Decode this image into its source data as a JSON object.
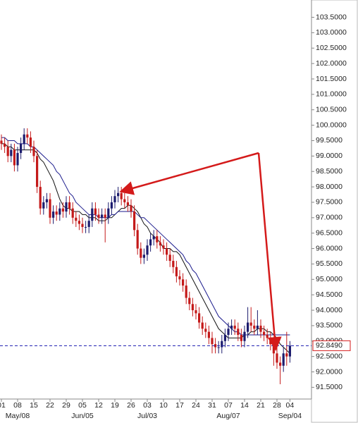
{
  "chart_data": {
    "type": "candlestick",
    "categories": [
      "01",
      null,
      null,
      null,
      null,
      "08",
      null,
      null,
      null,
      null,
      "15",
      null,
      null,
      null,
      null,
      "22",
      null,
      null,
      null,
      null,
      "29",
      null,
      null,
      null,
      null,
      "05",
      null,
      null,
      null,
      null,
      "12",
      null,
      null,
      null,
      null,
      "19",
      null,
      null,
      null,
      null,
      "26",
      null,
      null,
      null,
      null,
      "03",
      null,
      null,
      null,
      null,
      "10",
      null,
      null,
      null,
      null,
      "17",
      null,
      null,
      null,
      null,
      "24",
      null,
      null,
      null,
      null,
      "31",
      null,
      null,
      null,
      null,
      "07",
      null,
      null,
      null,
      null,
      "14",
      null,
      null,
      null,
      null,
      "21",
      null,
      null,
      null,
      null,
      "28",
      null,
      null,
      null,
      "04"
    ],
    "months": [
      null,
      null,
      null,
      null,
      null,
      "May/08",
      null,
      null,
      null,
      null,
      null,
      null,
      null,
      null,
      null,
      null,
      null,
      null,
      null,
      null,
      null,
      null,
      null,
      null,
      null,
      "Jun/05",
      null,
      null,
      null,
      null,
      null,
      null,
      null,
      null,
      null,
      null,
      null,
      null,
      null,
      null,
      null,
      null,
      null,
      null,
      null,
      "Jul/03",
      null,
      null,
      null,
      null,
      null,
      null,
      null,
      null,
      null,
      null,
      null,
      null,
      null,
      null,
      null,
      null,
      null,
      null,
      null,
      null,
      null,
      null,
      null,
      null,
      "Aug/07",
      null,
      null,
      null,
      null,
      null,
      null,
      null,
      null,
      null,
      null,
      null,
      null,
      null,
      null,
      null,
      null,
      null,
      null,
      "Sep/04"
    ],
    "open": [
      99.5,
      99.4,
      99.3,
      99.0,
      99.2,
      98.7,
      99.1,
      99.4,
      99.7,
      99.6,
      99.3,
      99.0,
      98.0,
      97.3,
      97.5,
      97.6,
      97.0,
      97.2,
      97.1,
      97.3,
      97.2,
      97.5,
      97.3,
      97.0,
      96.9,
      96.8,
      96.7,
      96.7,
      96.9,
      97.3,
      97.1,
      97.0,
      97.1,
      97.0,
      97.3,
      97.5,
      97.7,
      97.8,
      97.6,
      97.5,
      97.4,
      97.2,
      96.6,
      96.0,
      95.7,
      95.8,
      96.1,
      96.3,
      96.4,
      96.2,
      96.1,
      96.0,
      95.8,
      95.6,
      95.4,
      95.1,
      95.0,
      94.8,
      94.4,
      94.2,
      94.0,
      93.9,
      93.6,
      93.4,
      93.3,
      93.1,
      92.9,
      92.8,
      92.8,
      93.0,
      93.2,
      93.4,
      93.5,
      93.4,
      93.2,
      93.0,
      93.3,
      93.6,
      93.5,
      93.4,
      93.5,
      93.3,
      93.2,
      93.1,
      92.9,
      92.6,
      92.3,
      92.2,
      92.6,
      92.5
    ],
    "high": [
      99.7,
      99.6,
      99.5,
      99.4,
      99.4,
      99.3,
      99.6,
      99.9,
      99.9,
      99.8,
      99.5,
      99.2,
      98.2,
      97.7,
      97.8,
      97.8,
      97.4,
      97.4,
      97.5,
      97.5,
      97.7,
      97.7,
      97.5,
      97.2,
      97.1,
      97.0,
      96.9,
      97.1,
      97.5,
      97.5,
      97.3,
      97.3,
      97.3,
      97.5,
      97.7,
      97.9,
      98.0,
      98.0,
      97.8,
      97.7,
      97.6,
      97.4,
      96.8,
      96.2,
      96.0,
      96.3,
      96.5,
      96.6,
      96.6,
      96.4,
      96.3,
      96.2,
      96.0,
      95.8,
      95.6,
      95.3,
      95.2,
      95.0,
      94.6,
      94.4,
      94.2,
      94.1,
      93.8,
      93.6,
      93.5,
      93.3,
      93.1,
      93.0,
      93.2,
      93.4,
      93.6,
      93.7,
      93.7,
      93.6,
      93.4,
      93.5,
      94.1,
      94.1,
      93.7,
      94.0,
      93.7,
      93.5,
      93.4,
      93.3,
      93.1,
      92.8,
      92.5,
      92.8,
      93.3,
      93.0
    ],
    "low": [
      99.2,
      99.1,
      98.8,
      98.8,
      98.5,
      98.5,
      98.9,
      99.2,
      99.4,
      99.1,
      98.8,
      97.8,
      97.1,
      97.1,
      97.3,
      96.8,
      96.8,
      96.9,
      96.9,
      97.0,
      97.0,
      97.1,
      96.8,
      96.7,
      96.6,
      96.5,
      96.5,
      96.5,
      96.7,
      96.9,
      96.8,
      96.8,
      96.2,
      96.8,
      97.1,
      97.3,
      97.5,
      97.4,
      97.3,
      97.2,
      97.0,
      96.4,
      95.8,
      95.5,
      95.5,
      95.6,
      95.9,
      96.1,
      96.0,
      95.9,
      95.8,
      95.6,
      95.4,
      95.2,
      94.9,
      94.8,
      94.6,
      94.2,
      94.0,
      93.8,
      93.7,
      93.4,
      93.2,
      93.1,
      92.9,
      92.6,
      92.6,
      92.6,
      92.6,
      92.8,
      93.0,
      93.2,
      93.2,
      93.0,
      92.8,
      92.8,
      93.1,
      93.3,
      93.2,
      93.2,
      93.1,
      93.0,
      92.9,
      92.7,
      92.2,
      92.1,
      91.6,
      92.0,
      92.2,
      92.3
    ],
    "close": [
      99.4,
      99.3,
      99.0,
      99.2,
      98.7,
      99.1,
      99.4,
      99.7,
      99.6,
      99.3,
      99.0,
      98.0,
      97.3,
      97.5,
      97.6,
      97.0,
      97.2,
      97.1,
      97.3,
      97.2,
      97.5,
      97.3,
      97.0,
      96.9,
      96.8,
      96.7,
      96.7,
      96.9,
      97.3,
      97.1,
      97.0,
      97.1,
      97.0,
      97.3,
      97.5,
      97.7,
      97.8,
      97.6,
      97.5,
      97.4,
      97.2,
      96.6,
      96.0,
      95.7,
      95.8,
      96.1,
      96.3,
      96.4,
      96.2,
      96.1,
      96.0,
      95.8,
      95.6,
      95.4,
      95.1,
      95.0,
      94.8,
      94.4,
      94.2,
      94.0,
      93.9,
      93.6,
      93.4,
      93.3,
      93.1,
      92.9,
      92.8,
      92.8,
      93.0,
      93.2,
      93.4,
      93.5,
      93.4,
      93.2,
      93.0,
      93.3,
      93.6,
      93.5,
      93.4,
      93.5,
      93.3,
      93.2,
      93.1,
      92.9,
      92.6,
      92.3,
      92.2,
      92.6,
      92.5,
      92.85
    ],
    "up_color": "#1c1c6e",
    "down_color": "#c41a1a",
    "series": [
      {
        "color": "#111111",
        "values": [
          99.4,
          99.4,
          99.3,
          99.3,
          99.2,
          99.2,
          99.2,
          99.2,
          99.2,
          99.2,
          99.2,
          99.1,
          98.9,
          98.8,
          98.6,
          98.4,
          98.2,
          97.9,
          97.6,
          97.4,
          97.3,
          97.3,
          97.2,
          97.2,
          97.2,
          97.1,
          97.1,
          97.0,
          97.0,
          97.0,
          96.9,
          96.9,
          96.9,
          97.0,
          97.0,
          97.1,
          97.2,
          97.3,
          97.3,
          97.4,
          97.4,
          97.3,
          97.2,
          97.0,
          96.8,
          96.7,
          96.5,
          96.4,
          96.3,
          96.2,
          96.0,
          96.0,
          96.0,
          95.9,
          95.9,
          95.8,
          95.6,
          95.4,
          95.2,
          95.0,
          94.8,
          94.6,
          94.4,
          94.2,
          94.0,
          93.8,
          93.6,
          93.4,
          93.3,
          93.2,
          93.1,
          93.1,
          93.1,
          93.1,
          93.1,
          93.2,
          93.2,
          93.3,
          93.3,
          93.4,
          93.4,
          93.4,
          93.3,
          93.3,
          93.2,
          93.1,
          92.9,
          92.8,
          92.7,
          92.6
        ]
      },
      {
        "color": "#1a1a8c",
        "values": [
          99.6,
          99.6,
          99.5,
          99.5,
          99.5,
          99.4,
          99.4,
          99.4,
          99.4,
          99.3,
          99.3,
          99.2,
          99.1,
          99.0,
          98.9,
          98.8,
          98.7,
          98.5,
          98.4,
          98.2,
          98.0,
          97.8,
          97.7,
          97.5,
          97.4,
          97.3,
          97.2,
          97.1,
          97.1,
          97.1,
          97.0,
          97.0,
          97.0,
          97.0,
          97.1,
          97.1,
          97.2,
          97.2,
          97.2,
          97.2,
          97.2,
          97.2,
          97.1,
          97.0,
          97.0,
          96.9,
          96.8,
          96.7,
          96.6,
          96.5,
          96.4,
          96.3,
          96.2,
          96.1,
          96.0,
          95.9,
          95.8,
          95.6,
          95.5,
          95.3,
          95.2,
          95.0,
          94.8,
          94.6,
          94.4,
          94.2,
          94.0,
          93.8,
          93.7,
          93.6,
          93.5,
          93.4,
          93.3,
          93.3,
          93.2,
          93.2,
          93.2,
          93.2,
          93.2,
          93.2,
          93.2,
          93.2,
          93.2,
          93.2,
          93.2,
          93.2,
          93.2,
          93.2,
          93.2,
          93.2
        ]
      }
    ],
    "last_price": {
      "value": 92.849,
      "label": "92.8490"
    },
    "ylim": [
      91.12,
      104.06
    ],
    "yticks": [
      {
        "value": 91.5,
        "label": "91.5000"
      },
      {
        "value": 92,
        "label": "92.0000"
      },
      {
        "value": 92.5,
        "label": "92.5000"
      },
      {
        "value": 93,
        "label": "93.0000"
      },
      {
        "value": 93.5,
        "label": "93.5000"
      },
      {
        "value": 94,
        "label": "94.0000"
      },
      {
        "value": 94.5,
        "label": "94.5000"
      },
      {
        "value": 95,
        "label": "95.0000"
      },
      {
        "value": 95.5,
        "label": "95.5000"
      },
      {
        "value": 96,
        "label": "96.0000"
      },
      {
        "value": 96.5,
        "label": "96.5000"
      },
      {
        "value": 97,
        "label": "97.0000"
      },
      {
        "value": 97.5,
        "label": "97.5000"
      },
      {
        "value": 98,
        "label": "98.0000"
      },
      {
        "value": 98.5,
        "label": "98.5000"
      },
      {
        "value": 99,
        "label": "99.0000"
      },
      {
        "value": 99.5,
        "label": "99.5000"
      },
      {
        "value": 100,
        "label": "100.0000"
      },
      {
        "value": 100.5,
        "label": "100.5000"
      },
      {
        "value": 101,
        "label": "101.0000"
      },
      {
        "value": 101.5,
        "label": "101.5000"
      },
      {
        "value": 102,
        "label": "102.0000"
      },
      {
        "value": 102.5,
        "label": "102.5000"
      },
      {
        "value": 103,
        "label": "103.0000"
      },
      {
        "value": 103.5,
        "label": "103.5000"
      }
    ]
  }
}
